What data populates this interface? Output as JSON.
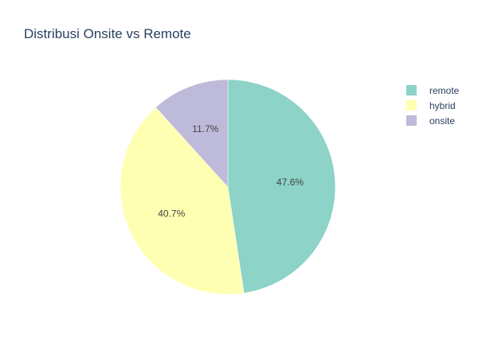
{
  "chart_data": {
    "type": "pie",
    "title": "Distribusi Onsite vs Remote",
    "slices": [
      {
        "label": "remote",
        "value": 47.6,
        "display": "47.6%",
        "color": "#8dd3c7"
      },
      {
        "label": "hybrid",
        "value": 40.7,
        "display": "40.7%",
        "color": "#ffffb3"
      },
      {
        "label": "onsite",
        "value": 11.7,
        "display": "11.7%",
        "color": "#bebada"
      }
    ],
    "legend_position": "top-right"
  }
}
